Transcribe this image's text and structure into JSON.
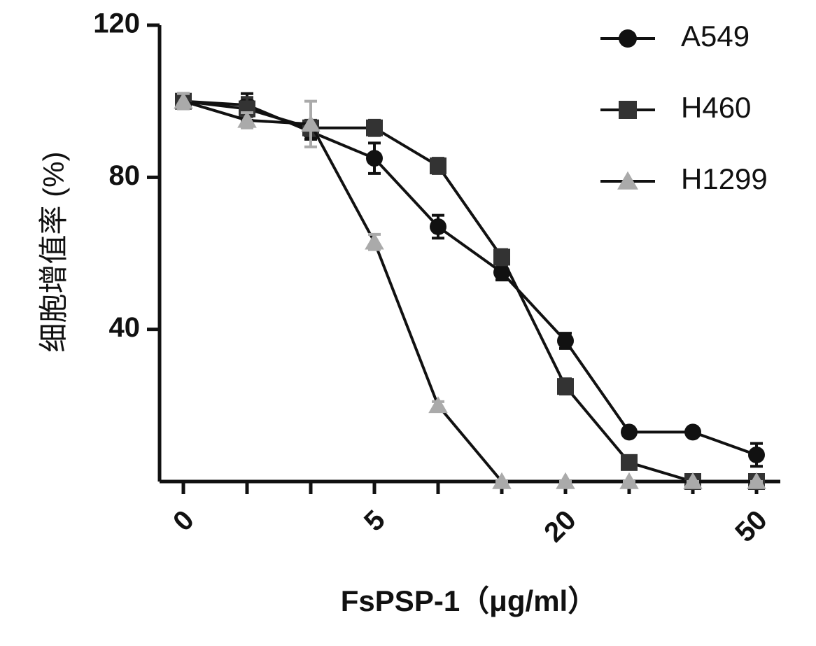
{
  "chart_data": {
    "type": "line",
    "ylabel": "细胞增值率 (%)",
    "xlabel": "FsPSP-1（μg/ml）",
    "categories": [
      "0",
      null,
      null,
      "5",
      null,
      null,
      "20",
      null,
      null,
      "50"
    ],
    "ylim": [
      0,
      120
    ],
    "yticks": [
      40,
      80,
      120
    ],
    "legend": "top-right",
    "series": [
      {
        "name": "A549",
        "color": "#111111",
        "marker": "circle",
        "values": [
          100,
          99,
          92,
          85,
          67,
          55,
          37,
          13,
          13,
          7
        ],
        "errors": [
          2,
          3,
          2,
          4,
          3,
          2,
          2,
          1,
          1,
          3
        ]
      },
      {
        "name": "H460",
        "color": "#333333",
        "marker": "square",
        "values": [
          100,
          98,
          93,
          93,
          83,
          59,
          25,
          5,
          0,
          0
        ],
        "errors": [
          2,
          3,
          2,
          2,
          2,
          2,
          2,
          1,
          0,
          0
        ]
      },
      {
        "name": "H1299",
        "color": "#aaaaaa",
        "marker": "triangle",
        "values": [
          100,
          95,
          94,
          63,
          20,
          0,
          0,
          0,
          0,
          0
        ],
        "errors": [
          2,
          2,
          6,
          2,
          1,
          0,
          0,
          0,
          0,
          0
        ]
      }
    ]
  }
}
